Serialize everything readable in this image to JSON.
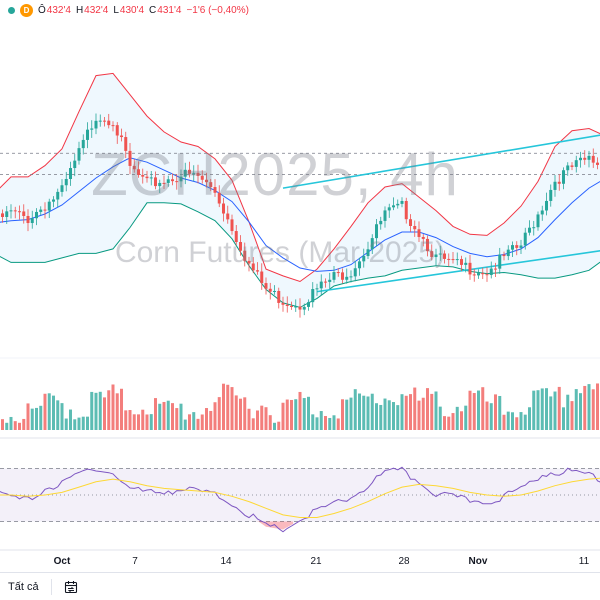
{
  "legend": {
    "ohlc": [
      {
        "key": "Ô",
        "value": "432'4"
      },
      {
        "key": "H",
        "value": "432'4"
      },
      {
        "key": "L",
        "value": "430'4"
      },
      {
        "key": "C",
        "value": "431'4"
      }
    ],
    "change": "−1'6 (−0,40%)",
    "d_label": "D",
    "status_color": "#26a69a",
    "badge_color": "#ff9800",
    "down_color": "#f23645"
  },
  "watermark": {
    "symbol": "ZCH2025, 4h",
    "description": "Corn Futures (Mar 2025)"
  },
  "chart_data": {
    "type": "candlestick",
    "interval": "4h",
    "x_ticks": [
      "Oct",
      "7",
      "14",
      "21",
      "28",
      "Nov",
      "11"
    ],
    "price_series": [
      424.5,
      425.3,
      424.8,
      426.0,
      427.2,
      430.6,
      434.0,
      433.6,
      429.3,
      427.8,
      428.2,
      428.7,
      428.5,
      427.2,
      424.0,
      420.7,
      418.5,
      417.5,
      417.2,
      418.5,
      419.6,
      420.2,
      422.4,
      425.2,
      425.8,
      423.6,
      421.3,
      420.7,
      420.4,
      420.1,
      421.3,
      422.4,
      425.2,
      428.2,
      429.3,
      430.1,
      429.3
    ],
    "bollinger_upper": [
      427,
      428.5,
      428.5,
      429.5,
      431,
      434.3,
      437.5,
      437.7,
      435.8,
      433.9,
      432.5,
      431.6,
      431.2,
      430.1,
      428.2,
      424.5,
      420.3,
      419.7,
      419.2,
      420.3,
      422.1,
      424.1,
      426.2,
      427.6,
      427.9,
      426.7,
      425.5,
      424.1,
      423.4,
      423.3,
      424.4,
      425.9,
      428.1,
      431.2,
      432.6,
      432.8,
      432.1
    ],
    "bollinger_basis": [
      424.4,
      424.6,
      424.7,
      425.2,
      426.0,
      427.2,
      428.4,
      429.4,
      430.2,
      429.8,
      429.1,
      428.4,
      428.0,
      427.3,
      426.3,
      424.5,
      422.4,
      421.3,
      420.4,
      420.1,
      420.2,
      420.7,
      421.8,
      422.9,
      423.6,
      423.6,
      423.1,
      422.3,
      421.7,
      421.4,
      421.6,
      422.1,
      423.1,
      424.7,
      426.2,
      427.5,
      428.4
    ],
    "bollinger_lower": [
      421.7,
      420.9,
      420.9,
      420.9,
      421.3,
      421.7,
      421.7,
      422.1,
      424.0,
      426.2,
      426.2,
      426.1,
      425.4,
      424.6,
      423.0,
      420.6,
      418.5,
      417.3,
      416.9,
      417.7,
      418.8,
      419.2,
      419.5,
      419.7,
      420.2,
      420.4,
      420.6,
      420.5,
      420.1,
      419.9,
      420.0,
      419.8,
      419.5,
      419.5,
      419.8,
      420.2,
      421.3
    ],
    "channel_lines": [
      {
        "from": [
          17,
          427.5
        ],
        "to": [
          36,
          432.3
        ]
      },
      {
        "from": [
          19,
          418.3
        ],
        "to": [
          36,
          422.0
        ]
      }
    ],
    "volume_relative": [
      0.35,
      0.25,
      0.2,
      0.4,
      0.45,
      0.3,
      0.5,
      0.55,
      0.4,
      0.45,
      0.3,
      0.35,
      0.3,
      0.55,
      0.5,
      0.45,
      0.4,
      0.3,
      0.5,
      0.35,
      0.4,
      0.45,
      0.5,
      0.55,
      0.6,
      0.45,
      0.5,
      0.35,
      0.55,
      0.45,
      0.3,
      0.4,
      0.5,
      0.45,
      0.65,
      0.8,
      0.6
    ],
    "rsi": [
      52,
      48,
      46,
      55,
      58,
      66,
      71,
      66,
      55,
      52,
      53,
      54,
      53,
      50,
      44,
      35,
      26,
      24,
      31,
      38,
      43,
      48,
      57,
      67,
      68,
      60,
      51,
      48,
      46,
      45,
      49,
      54,
      64,
      68,
      67,
      66,
      61
    ],
    "rsi_ma": [
      50,
      50,
      49,
      50,
      52,
      56,
      60,
      62,
      60,
      57,
      55,
      54,
      53,
      52,
      49,
      45,
      40,
      35,
      33,
      33,
      36,
      40,
      45,
      51,
      56,
      58,
      57,
      55,
      52,
      50,
      49,
      50,
      53,
      57,
      60,
      62,
      63
    ],
    "rsi_levels": [
      70,
      50,
      30
    ],
    "colors": {
      "up": "#26a69a",
      "down": "#ef5350",
      "bb_upper": "#f23645",
      "bb_basis": "#2962ff",
      "bb_lower": "#089981",
      "bb_fill": "#2196f3",
      "channel": "#26c6da",
      "rsi_line": "#7e57c2",
      "rsi_ma": "#fdd835",
      "rsi_band": "#7e57c2",
      "oversold_fill": "#f23645"
    }
  },
  "bottom_bar": {
    "range_all": "Tất cả",
    "calendar_icon": "calendar-icon"
  }
}
